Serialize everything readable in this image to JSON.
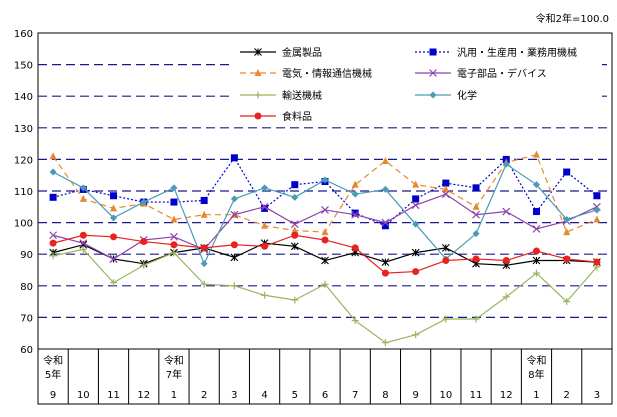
{
  "chart_data": {
    "type": "line",
    "note": "令和2年=100.0",
    "ylim": [
      60,
      160
    ],
    "yticks": [
      60,
      70,
      80,
      90,
      100,
      110,
      120,
      130,
      140,
      150,
      160
    ],
    "x": [
      {
        "era": "令和",
        "year": "5年",
        "month": "9"
      },
      {
        "era": "",
        "year": "",
        "month": "10"
      },
      {
        "era": "",
        "year": "",
        "month": "11"
      },
      {
        "era": "",
        "year": "",
        "month": "12"
      },
      {
        "era": "令和",
        "year": "7年",
        "month": "1"
      },
      {
        "era": "",
        "year": "",
        "month": "2"
      },
      {
        "era": "",
        "year": "",
        "month": "3"
      },
      {
        "era": "",
        "year": "",
        "month": "4"
      },
      {
        "era": "",
        "year": "",
        "month": "5"
      },
      {
        "era": "",
        "year": "",
        "month": "6"
      },
      {
        "era": "",
        "year": "",
        "month": "7"
      },
      {
        "era": "",
        "year": "",
        "month": "8"
      },
      {
        "era": "",
        "year": "",
        "month": "9"
      },
      {
        "era": "",
        "year": "",
        "month": "10"
      },
      {
        "era": "",
        "year": "",
        "month": "11"
      },
      {
        "era": "",
        "year": "",
        "month": "12"
      },
      {
        "era": "令和",
        "year": "8年",
        "month": "1"
      },
      {
        "era": "",
        "year": "",
        "month": "2"
      },
      {
        "era": "",
        "year": "",
        "month": "3"
      }
    ],
    "grid": "dashed-horizontal",
    "legend": "top",
    "series": [
      {
        "name": "金属製品",
        "color": "#000000",
        "marker": "star",
        "dash": "solid",
        "values": [
          90.5,
          93,
          88.5,
          87,
          90.5,
          92,
          89,
          93.5,
          92.5,
          88,
          90.5,
          87.5,
          90.5,
          92,
          87,
          86.5,
          88,
          88,
          87.5
        ]
      },
      {
        "name": "汎用・生産用・業務用機械",
        "color": "#0000cc",
        "marker": "square",
        "dash": "dotted",
        "values": [
          108,
          110.5,
          108.5,
          106.5,
          106.5,
          107,
          120.5,
          104.5,
          112,
          113,
          103,
          99,
          107.5,
          112.5,
          111,
          120,
          103.5,
          116,
          108.5
        ]
      },
      {
        "name": "電気・情報通信機械",
        "color": "#e6892e",
        "marker": "triangle",
        "dash": "dashed",
        "values": [
          121,
          107.5,
          104.5,
          106,
          101,
          102.5,
          102.5,
          99,
          97.5,
          97,
          112,
          119.5,
          112,
          110.5,
          105,
          119,
          121.5,
          97,
          101
        ]
      },
      {
        "name": "電子部品・デバイス",
        "color": "#8e44ad",
        "marker": "x",
        "dash": "solid",
        "values": [
          96,
          93.5,
          88.5,
          94.5,
          95.5,
          91.5,
          102.5,
          105,
          99.5,
          104,
          102.5,
          100,
          105.5,
          109,
          102.5,
          103.5,
          98,
          100.5,
          105
        ]
      },
      {
        "name": "輸送機械",
        "color": "#9bb55f",
        "marker": "plus",
        "dash": "solid",
        "values": [
          89.5,
          91.5,
          81,
          86.5,
          90.5,
          80.5,
          80,
          77,
          75.5,
          80.5,
          69,
          62,
          64.5,
          69.5,
          69.5,
          76.5,
          84,
          75,
          86
        ]
      },
      {
        "name": "化学",
        "color": "#4a9bb5",
        "marker": "diamond",
        "dash": "solid",
        "values": [
          116,
          111,
          101.5,
          106.5,
          111,
          87,
          107.5,
          111,
          108,
          113.5,
          109,
          110.5,
          99.5,
          88.5,
          96.5,
          118.5,
          112,
          101,
          104
        ]
      },
      {
        "name": "食料品",
        "color": "#e8231f",
        "marker": "circle",
        "dash": "solid",
        "values": [
          93.5,
          96,
          95.5,
          94,
          93,
          92,
          93,
          92.5,
          96,
          94.5,
          92,
          84,
          84.5,
          88,
          88.5,
          88,
          91,
          88.5,
          87.5
        ]
      }
    ]
  }
}
